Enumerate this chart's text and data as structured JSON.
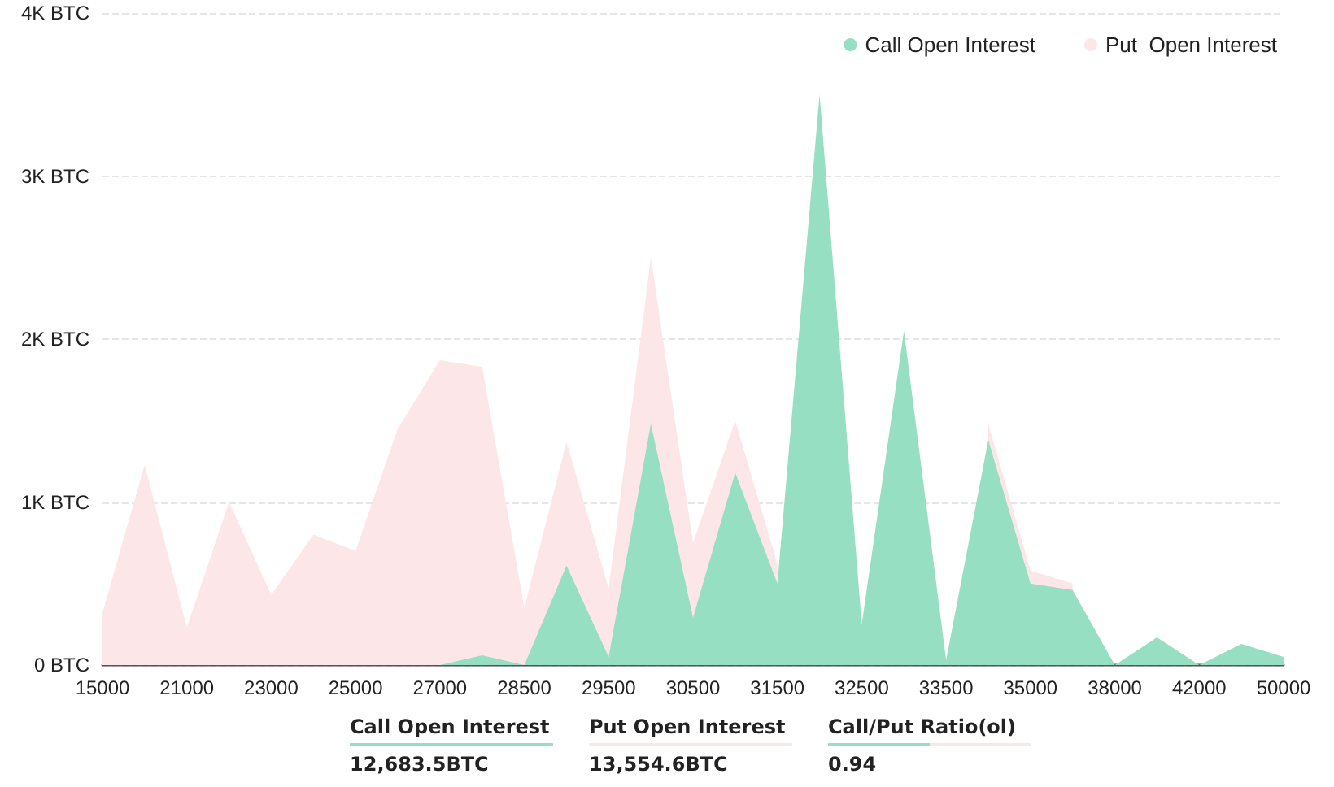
{
  "chart_data": {
    "type": "area",
    "categories": [
      "15000",
      null,
      "21000",
      null,
      "23000",
      null,
      "25000",
      null,
      "27000",
      null,
      "28500",
      null,
      "29500",
      null,
      "30500",
      null,
      "31500",
      null,
      "32500",
      null,
      "33500",
      null,
      "35000",
      null,
      "38000",
      null,
      "42000",
      null,
      "50000"
    ],
    "series": [
      {
        "name": "Call Open Interest",
        "color": "#96dfc2",
        "values": [
          0,
          0,
          0,
          0,
          0,
          0,
          0,
          0,
          0,
          60,
          0,
          610,
          50,
          1480,
          290,
          1180,
          500,
          3500,
          250,
          2050,
          30,
          1380,
          500,
          460,
          0,
          170,
          0,
          130,
          50
        ]
      },
      {
        "name": "Put  Open Interest",
        "color": "#fce6e8",
        "values": [
          320,
          1230,
          230,
          1000,
          430,
          800,
          700,
          1450,
          1870,
          1830,
          350,
          1370,
          470,
          2500,
          750,
          1500,
          620,
          null,
          null,
          null,
          null,
          1480,
          580,
          500,
          null,
          null,
          null,
          null,
          null
        ]
      }
    ],
    "ylim": [
      0,
      4000
    ],
    "yticks": [
      {
        "value": 0,
        "label": "0 BTC"
      },
      {
        "value": 1000,
        "label": "1K BTC"
      },
      {
        "value": 2000,
        "label": "2K BTC"
      },
      {
        "value": 3000,
        "label": "3K BTC"
      },
      {
        "value": 4000,
        "label": "4K BTC"
      }
    ],
    "grid": "y",
    "legend": "top right",
    "marker": "none",
    "annotations": [
      "Call Open Interest",
      "12,683.5BTC",
      "Put Open Interest",
      "13,554.6BTC",
      "Call/Put Ratio(ol)",
      "0.94"
    ]
  }
}
